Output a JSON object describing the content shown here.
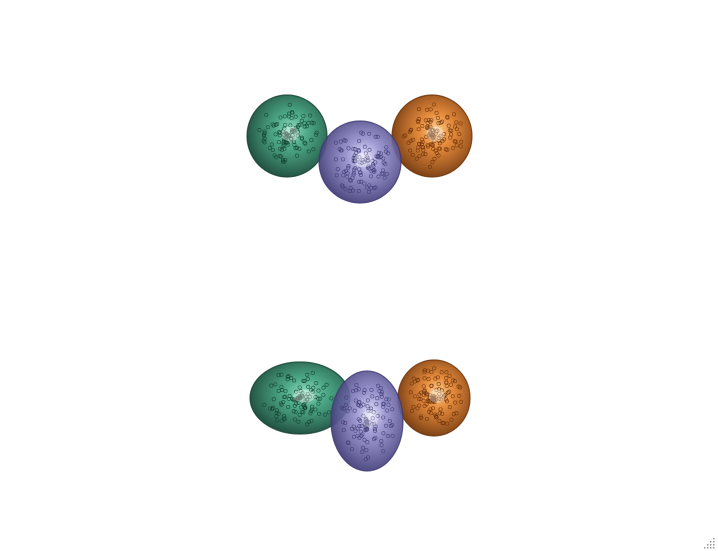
{
  "scene": {
    "background": "#ffffff",
    "domains": [
      {
        "name": "domain-1",
        "color": "#2e9a73",
        "dark": "#123f30",
        "light": "#8fe0c0"
      },
      {
        "name": "domain-2",
        "color": "#8c87c8",
        "dark": "#3c3872",
        "light": "#e4e2ff"
      },
      {
        "name": "domain-3",
        "color": "#e0761a",
        "dark": "#6a2f05",
        "light": "#ffd08a"
      }
    ]
  },
  "icons": {
    "resize_grip": "resize-grip-icon"
  }
}
